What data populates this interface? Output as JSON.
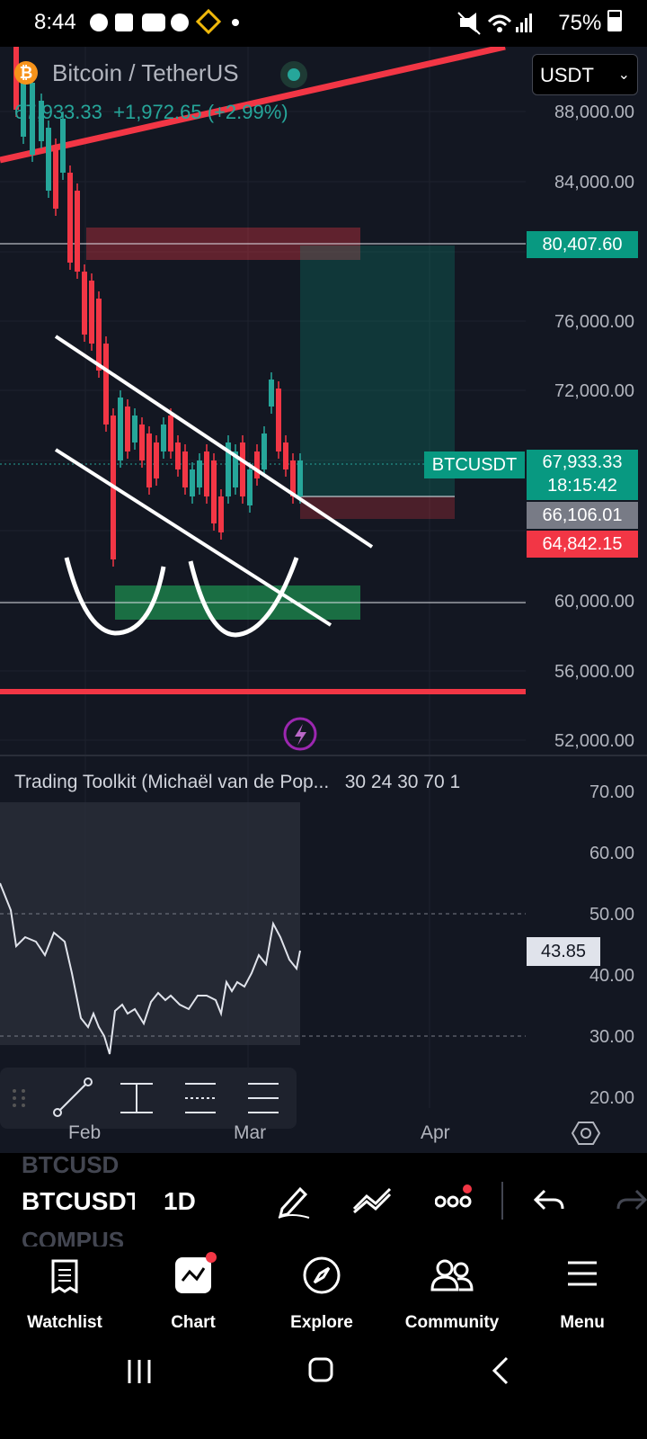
{
  "status_bar": {
    "time": "8:44",
    "battery": "75%"
  },
  "chart_header": {
    "pair": "Bitcoin / TetherUS",
    "price": "67,933.33",
    "change": "+1,972.65 (+2.99%)"
  },
  "currency_select": {
    "value": "USDT"
  },
  "price_axis": {
    "labels": [
      "88,000.00",
      "84,000.00",
      "76,000.00",
      "72,000.00",
      "60,000.00",
      "56,000.00",
      "52,000.00"
    ]
  },
  "price_tags": {
    "target": "80,407.60",
    "symbol": "BTCUSDT",
    "last_price": "67,933.33",
    "countdown": "18:15:42",
    "entry": "66,106.01",
    "stop": "64,842.15"
  },
  "indicator": {
    "name": "Trading Toolkit (Michaël van de Pop...",
    "params": "30 24 30 70 1",
    "axis_labels": [
      "70.00",
      "60.00",
      "50.00",
      "40.00",
      "30.00",
      "20.00"
    ],
    "current_value": "43.85"
  },
  "time_axis": {
    "labels": [
      "Feb",
      "Mar",
      "Apr"
    ]
  },
  "symbol_bar": {
    "symbol_prev": "BTCUSD",
    "symbol": "BTCUSDT",
    "symbol_next": "COMPUS",
    "interval": "1D"
  },
  "bottom_nav": {
    "items": [
      {
        "label": "Watchlist",
        "icon": "watchlist-icon"
      },
      {
        "label": "Chart",
        "icon": "chart-icon"
      },
      {
        "label": "Explore",
        "icon": "compass-icon"
      },
      {
        "label": "Community",
        "icon": "community-icon"
      },
      {
        "label": "Menu",
        "icon": "menu-icon"
      }
    ]
  },
  "colors": {
    "background": "#131722",
    "up": "#26a69a",
    "down": "#f23645",
    "accent": "#089981"
  }
}
